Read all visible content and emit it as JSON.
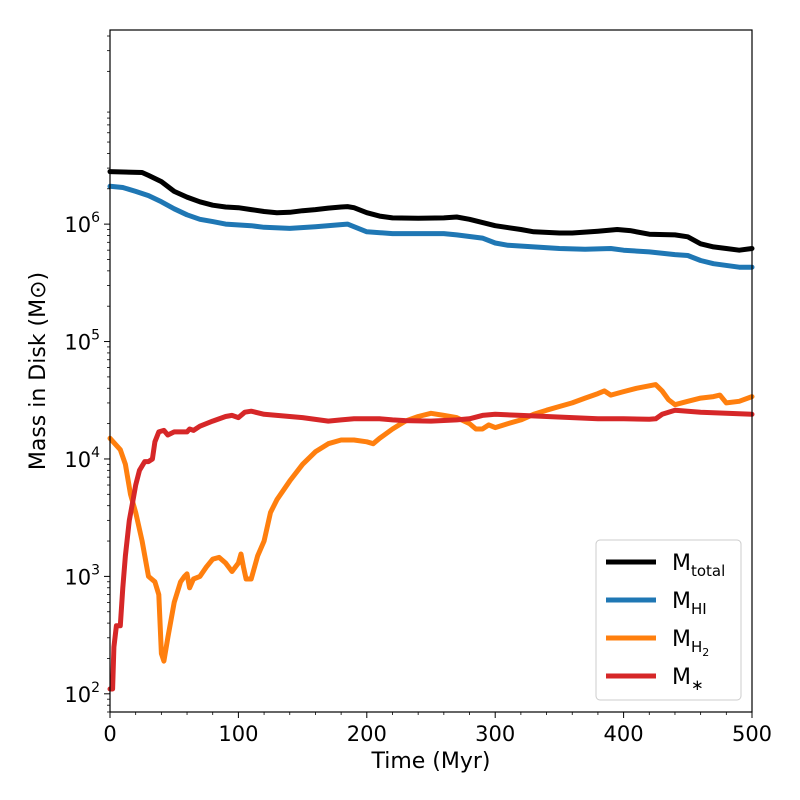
{
  "chart_data": {
    "type": "line",
    "xlabel": "Time (Myr)",
    "ylabel": "Mass in Disk (M⊙)",
    "xlim": [
      0,
      500
    ],
    "ylim": [
      70,
      45000000
    ],
    "yscale": "log",
    "x_ticks": [
      0,
      100,
      200,
      300,
      400,
      500
    ],
    "y_ticks": [
      {
        "value": 100,
        "base": "10",
        "exp": "2"
      },
      {
        "value": 1000,
        "base": "10",
        "exp": "3"
      },
      {
        "value": 10000,
        "base": "10",
        "exp": "4"
      },
      {
        "value": 100000,
        "base": "10",
        "exp": "5"
      },
      {
        "value": 1000000,
        "base": "10",
        "exp": "6"
      }
    ],
    "legend_position": "lower-right",
    "series": [
      {
        "key": "total",
        "name": "M",
        "sub": "total",
        "color": "#000000",
        "points": [
          [
            0,
            2800000
          ],
          [
            25,
            2750000
          ],
          [
            30,
            2600000
          ],
          [
            40,
            2300000
          ],
          [
            50,
            1900000
          ],
          [
            60,
            1700000
          ],
          [
            70,
            1550000
          ],
          [
            80,
            1450000
          ],
          [
            90,
            1400000
          ],
          [
            100,
            1380000
          ],
          [
            110,
            1330000
          ],
          [
            120,
            1280000
          ],
          [
            130,
            1250000
          ],
          [
            140,
            1260000
          ],
          [
            150,
            1300000
          ],
          [
            160,
            1330000
          ],
          [
            170,
            1370000
          ],
          [
            180,
            1400000
          ],
          [
            185,
            1410000
          ],
          [
            190,
            1380000
          ],
          [
            200,
            1250000
          ],
          [
            210,
            1170000
          ],
          [
            220,
            1130000
          ],
          [
            240,
            1120000
          ],
          [
            260,
            1130000
          ],
          [
            270,
            1150000
          ],
          [
            280,
            1100000
          ],
          [
            300,
            970000
          ],
          [
            320,
            900000
          ],
          [
            330,
            860000
          ],
          [
            350,
            840000
          ],
          [
            360,
            840000
          ],
          [
            380,
            870000
          ],
          [
            395,
            900000
          ],
          [
            405,
            880000
          ],
          [
            420,
            820000
          ],
          [
            440,
            810000
          ],
          [
            450,
            780000
          ],
          [
            460,
            680000
          ],
          [
            470,
            640000
          ],
          [
            480,
            620000
          ],
          [
            490,
            600000
          ],
          [
            500,
            620000
          ]
        ]
      },
      {
        "key": "hi",
        "name": "M",
        "sub": "HI",
        "color": "#1f77b4",
        "points": [
          [
            0,
            2100000
          ],
          [
            10,
            2050000
          ],
          [
            20,
            1900000
          ],
          [
            30,
            1750000
          ],
          [
            40,
            1550000
          ],
          [
            50,
            1350000
          ],
          [
            60,
            1200000
          ],
          [
            70,
            1100000
          ],
          [
            80,
            1050000
          ],
          [
            90,
            1000000
          ],
          [
            110,
            970000
          ],
          [
            120,
            940000
          ],
          [
            140,
            920000
          ],
          [
            160,
            950000
          ],
          [
            180,
            990000
          ],
          [
            185,
            1000000
          ],
          [
            190,
            950000
          ],
          [
            200,
            860000
          ],
          [
            220,
            830000
          ],
          [
            260,
            830000
          ],
          [
            270,
            810000
          ],
          [
            290,
            760000
          ],
          [
            300,
            690000
          ],
          [
            310,
            660000
          ],
          [
            330,
            640000
          ],
          [
            350,
            620000
          ],
          [
            370,
            610000
          ],
          [
            390,
            620000
          ],
          [
            400,
            600000
          ],
          [
            420,
            580000
          ],
          [
            440,
            550000
          ],
          [
            450,
            540000
          ],
          [
            460,
            490000
          ],
          [
            470,
            460000
          ],
          [
            490,
            430000
          ],
          [
            500,
            430000
          ]
        ]
      },
      {
        "key": "h2",
        "name": "M",
        "sub": "H",
        "sub_sub": "2",
        "color": "#ff7f0e",
        "points": [
          [
            0,
            15000
          ],
          [
            8,
            12000
          ],
          [
            12,
            9000
          ],
          [
            16,
            5000
          ],
          [
            20,
            3500
          ],
          [
            25,
            2000
          ],
          [
            30,
            1000
          ],
          [
            35,
            900
          ],
          [
            38,
            700
          ],
          [
            40,
            220
          ],
          [
            42,
            190
          ],
          [
            45,
            300
          ],
          [
            50,
            600
          ],
          [
            55,
            900
          ],
          [
            58,
            1000
          ],
          [
            60,
            1050
          ],
          [
            62,
            800
          ],
          [
            65,
            950
          ],
          [
            70,
            1000
          ],
          [
            75,
            1200
          ],
          [
            80,
            1400
          ],
          [
            85,
            1450
          ],
          [
            90,
            1300
          ],
          [
            95,
            1100
          ],
          [
            100,
            1300
          ],
          [
            102,
            1550
          ],
          [
            104,
            1200
          ],
          [
            106,
            950
          ],
          [
            110,
            950
          ],
          [
            115,
            1500
          ],
          [
            120,
            2000
          ],
          [
            125,
            3500
          ],
          [
            130,
            4500
          ],
          [
            140,
            6500
          ],
          [
            150,
            9000
          ],
          [
            160,
            11500
          ],
          [
            170,
            13500
          ],
          [
            180,
            14500
          ],
          [
            190,
            14500
          ],
          [
            200,
            14000
          ],
          [
            205,
            13500
          ],
          [
            210,
            15000
          ],
          [
            220,
            18000
          ],
          [
            230,
            21000
          ],
          [
            240,
            23000
          ],
          [
            250,
            24500
          ],
          [
            260,
            23500
          ],
          [
            270,
            22500
          ],
          [
            280,
            20000
          ],
          [
            285,
            18000
          ],
          [
            290,
            18000
          ],
          [
            295,
            19500
          ],
          [
            300,
            18500
          ],
          [
            310,
            20000
          ],
          [
            320,
            21500
          ],
          [
            330,
            24000
          ],
          [
            340,
            26000
          ],
          [
            350,
            28000
          ],
          [
            360,
            30000
          ],
          [
            370,
            33000
          ],
          [
            380,
            36000
          ],
          [
            385,
            38000
          ],
          [
            390,
            35000
          ],
          [
            400,
            37500
          ],
          [
            410,
            40000
          ],
          [
            420,
            42000
          ],
          [
            425,
            43000
          ],
          [
            430,
            38000
          ],
          [
            435,
            32000
          ],
          [
            440,
            29000
          ],
          [
            450,
            31000
          ],
          [
            460,
            33000
          ],
          [
            470,
            34000
          ],
          [
            475,
            35000
          ],
          [
            480,
            30000
          ],
          [
            490,
            31000
          ],
          [
            500,
            34000
          ]
        ]
      },
      {
        "key": "star",
        "name": "M",
        "sub": "∗",
        "color": "#d62728",
        "points": [
          [
            0,
            110
          ],
          [
            2,
            110
          ],
          [
            3,
            250
          ],
          [
            5,
            380
          ],
          [
            8,
            380
          ],
          [
            10,
            800
          ],
          [
            12,
            1500
          ],
          [
            15,
            3000
          ],
          [
            18,
            4500
          ],
          [
            20,
            6000
          ],
          [
            23,
            8000
          ],
          [
            27,
            9500
          ],
          [
            30,
            9500
          ],
          [
            33,
            10000
          ],
          [
            35,
            14000
          ],
          [
            38,
            17000
          ],
          [
            42,
            17500
          ],
          [
            45,
            16000
          ],
          [
            50,
            17000
          ],
          [
            60,
            17000
          ],
          [
            62,
            18000
          ],
          [
            65,
            17500
          ],
          [
            70,
            19000
          ],
          [
            80,
            21000
          ],
          [
            90,
            23000
          ],
          [
            95,
            23500
          ],
          [
            100,
            22500
          ],
          [
            105,
            25000
          ],
          [
            110,
            25500
          ],
          [
            120,
            24000
          ],
          [
            150,
            22500
          ],
          [
            170,
            21000
          ],
          [
            180,
            21500
          ],
          [
            190,
            22000
          ],
          [
            200,
            22000
          ],
          [
            210,
            22000
          ],
          [
            220,
            21500
          ],
          [
            230,
            21200
          ],
          [
            250,
            21000
          ],
          [
            270,
            21500
          ],
          [
            280,
            22000
          ],
          [
            290,
            23500
          ],
          [
            300,
            24000
          ],
          [
            320,
            23500
          ],
          [
            340,
            23000
          ],
          [
            360,
            22500
          ],
          [
            380,
            22000
          ],
          [
            400,
            22000
          ],
          [
            420,
            21800
          ],
          [
            425,
            22000
          ],
          [
            430,
            24000
          ],
          [
            440,
            26000
          ],
          [
            450,
            25500
          ],
          [
            460,
            25000
          ],
          [
            480,
            24500
          ],
          [
            500,
            24000
          ]
        ]
      }
    ]
  }
}
